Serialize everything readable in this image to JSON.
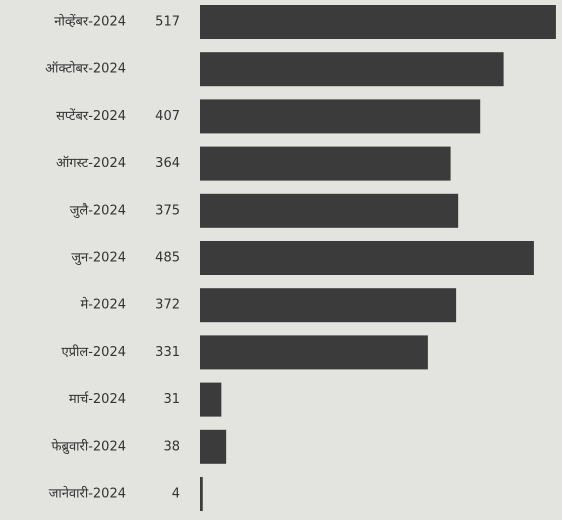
{
  "chart_data": {
    "type": "bar",
    "orientation": "horizontal",
    "categories": [
      "नोव्हेंबर-2024",
      "ऑक्टोबर-2024",
      "सप्टेंबर-2024",
      "ऑगस्ट-2024",
      "जुलै-2024",
      "जुन-2024",
      "मे-2024",
      "एप्रील-2024",
      "मार्च-2024",
      "फेब्रुवारी-2024",
      "जानेवारी-2024"
    ],
    "values": [
      517,
      441,
      407,
      364,
      375,
      485,
      372,
      331,
      31,
      38,
      4
    ],
    "value_labels": [
      "517",
      null,
      "407",
      "364",
      "375",
      "485",
      "372",
      "331",
      "31",
      "38",
      "4"
    ],
    "color": "#3b3b3b",
    "xlim": [
      0,
      520
    ]
  }
}
